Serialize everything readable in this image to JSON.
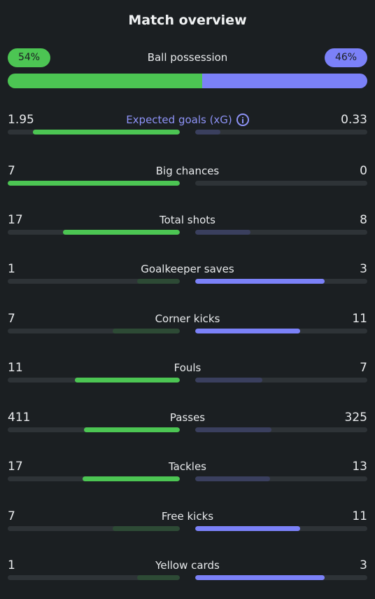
{
  "title": "Match overview",
  "possession": {
    "label": "Ball possession",
    "home_pct": "54%",
    "away_pct": "46%",
    "home_value": 54,
    "away_value": 46
  },
  "colors": {
    "home": "#4cc553",
    "away": "#7b81f8",
    "accent": "#8e93f7",
    "background": "#1b1f22"
  },
  "stats": [
    {
      "label": "Expected goals (xG)",
      "home": "1.95",
      "away": "0.33",
      "home_num": 1.95,
      "away_num": 0.33,
      "info_icon": "info-icon"
    },
    {
      "label": "Big chances",
      "home": "7",
      "away": "0",
      "home_num": 7,
      "away_num": 0
    },
    {
      "label": "Total shots",
      "home": "17",
      "away": "8",
      "home_num": 17,
      "away_num": 8
    },
    {
      "label": "Goalkeeper saves",
      "home": "1",
      "away": "3",
      "home_num": 1,
      "away_num": 3
    },
    {
      "label": "Corner kicks",
      "home": "7",
      "away": "11",
      "home_num": 7,
      "away_num": 11
    },
    {
      "label": "Fouls",
      "home": "11",
      "away": "7",
      "home_num": 11,
      "away_num": 7
    },
    {
      "label": "Passes",
      "home": "411",
      "away": "325",
      "home_num": 411,
      "away_num": 325
    },
    {
      "label": "Tackles",
      "home": "17",
      "away": "13",
      "home_num": 17,
      "away_num": 13
    },
    {
      "label": "Free kicks",
      "home": "7",
      "away": "11",
      "home_num": 7,
      "away_num": 11
    },
    {
      "label": "Yellow cards",
      "home": "1",
      "away": "3",
      "home_num": 1,
      "away_num": 3
    }
  ]
}
